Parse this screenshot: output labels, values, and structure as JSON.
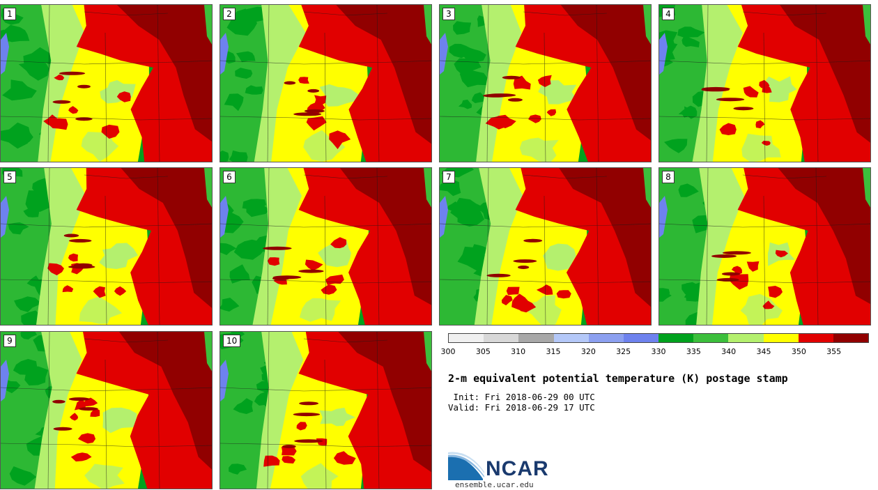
{
  "panels": [
    {
      "label": "1"
    },
    {
      "label": "2"
    },
    {
      "label": "3"
    },
    {
      "label": "4"
    },
    {
      "label": "5"
    },
    {
      "label": "6"
    },
    {
      "label": "7"
    },
    {
      "label": "8"
    },
    {
      "label": "9"
    },
    {
      "label": "10"
    }
  ],
  "colorbar": {
    "colors": [
      "#f0f0f0",
      "#d8d8d8",
      "#a8a8a8",
      "#b4c8f8",
      "#8ca0f0",
      "#6e82ee",
      "#00a21e",
      "#3cbf3c",
      "#b4f06e",
      "#ffff00",
      "#e10000",
      "#910000"
    ],
    "tick_labels": [
      "300",
      "305",
      "310",
      "315",
      "320",
      "325",
      "330",
      "335",
      "340",
      "345",
      "350",
      "355"
    ]
  },
  "title": "2-m equivalent potential temperature (K) postage stamp",
  "init_line": " Init: Fri 2018-06-29 00 UTC",
  "valid_line": "Valid: Fri 2018-06-29 17 UTC",
  "logo": {
    "name": "NCAR",
    "site": "ensemble.ucar.edu"
  }
}
